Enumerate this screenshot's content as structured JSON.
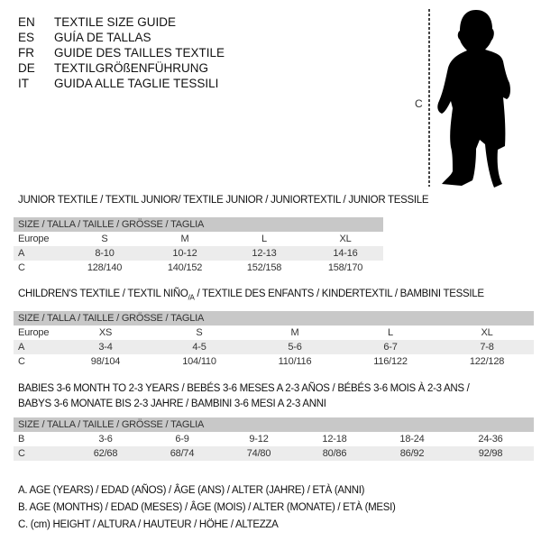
{
  "languages": [
    {
      "code": "EN",
      "title": "TEXTILE SIZE GUIDE"
    },
    {
      "code": "ES",
      "title": "GUÍA DE TALLAS"
    },
    {
      "code": "FR",
      "title": "GUIDE DES TAILLES TEXTILE"
    },
    {
      "code": "DE",
      "title": "TEXTILGRÖßENFÜHRUNG"
    },
    {
      "code": "IT",
      "title": "GUIDA ALLE TAGLIE TESSILI"
    }
  ],
  "figure": {
    "measure_label": "C"
  },
  "size_header": "SIZE / TALLA / TAILLE / GRÖSSE / TAGLIA",
  "junior": {
    "title": "JUNIOR TEXTILE / TEXTIL JUNIOR/ TEXTILE JUNIOR / JUNIORTEXTIL / JUNIOR TESSILE",
    "rows": [
      {
        "label": "Europe",
        "values": [
          "S",
          "M",
          "L",
          "XL"
        ]
      },
      {
        "label": "A",
        "values": [
          "8-10",
          "10-12",
          "12-13",
          "14-16"
        ]
      },
      {
        "label": "C",
        "values": [
          "128/140",
          "140/152",
          "152/158",
          "158/170"
        ]
      }
    ]
  },
  "children": {
    "title": "CHILDREN'S TEXTILE / TEXTIL NIÑO",
    "title_sub": "/A",
    "title_rest": " / TEXTILE DES ENFANTS / KINDERTEXTIL / BAMBINI TESSILE",
    "rows": [
      {
        "label": "Europe",
        "values": [
          "XS",
          "S",
          "M",
          "L",
          "XL"
        ]
      },
      {
        "label": "A",
        "values": [
          "3-4",
          "4-5",
          "5-6",
          "6-7",
          "7-8"
        ]
      },
      {
        "label": "C",
        "values": [
          "98/104",
          "104/110",
          "110/116",
          "116/122",
          "122/128"
        ]
      }
    ]
  },
  "babies": {
    "title_line1": "BABIES 3-6 MONTH TO 2-3 YEARS / BEBÉS 3-6 MESES A 2-3 AÑOS / BÉBÉS 3-6 MOIS À 2-3 ANS /",
    "title_line2": "BABYS 3-6 MONATE BIS 2-3 JAHRE / BAMBINI 3-6 MESI A 2-3 ANNI",
    "rows": [
      {
        "label": "B",
        "values": [
          "3-6",
          "6-9",
          "9-12",
          "12-18",
          "18-24",
          "24-36"
        ]
      },
      {
        "label": "C",
        "values": [
          "62/68",
          "68/74",
          "74/80",
          "80/86",
          "86/92",
          "92/98"
        ]
      }
    ]
  },
  "legend": [
    "A. AGE (YEARS) / EDAD (AÑOS) / ÂGE (ANS) / ALTER (JAHRE) / ETÀ (ANNI)",
    "B. AGE (MONTHS) / EDAD (MESES) / ÂGE (MOIS) / ALTER (MONATE) / ETÀ (MESI)",
    "C. (cm) HEIGHT / ALTURA / HAUTEUR / HÖHE / ALTEZZA"
  ]
}
